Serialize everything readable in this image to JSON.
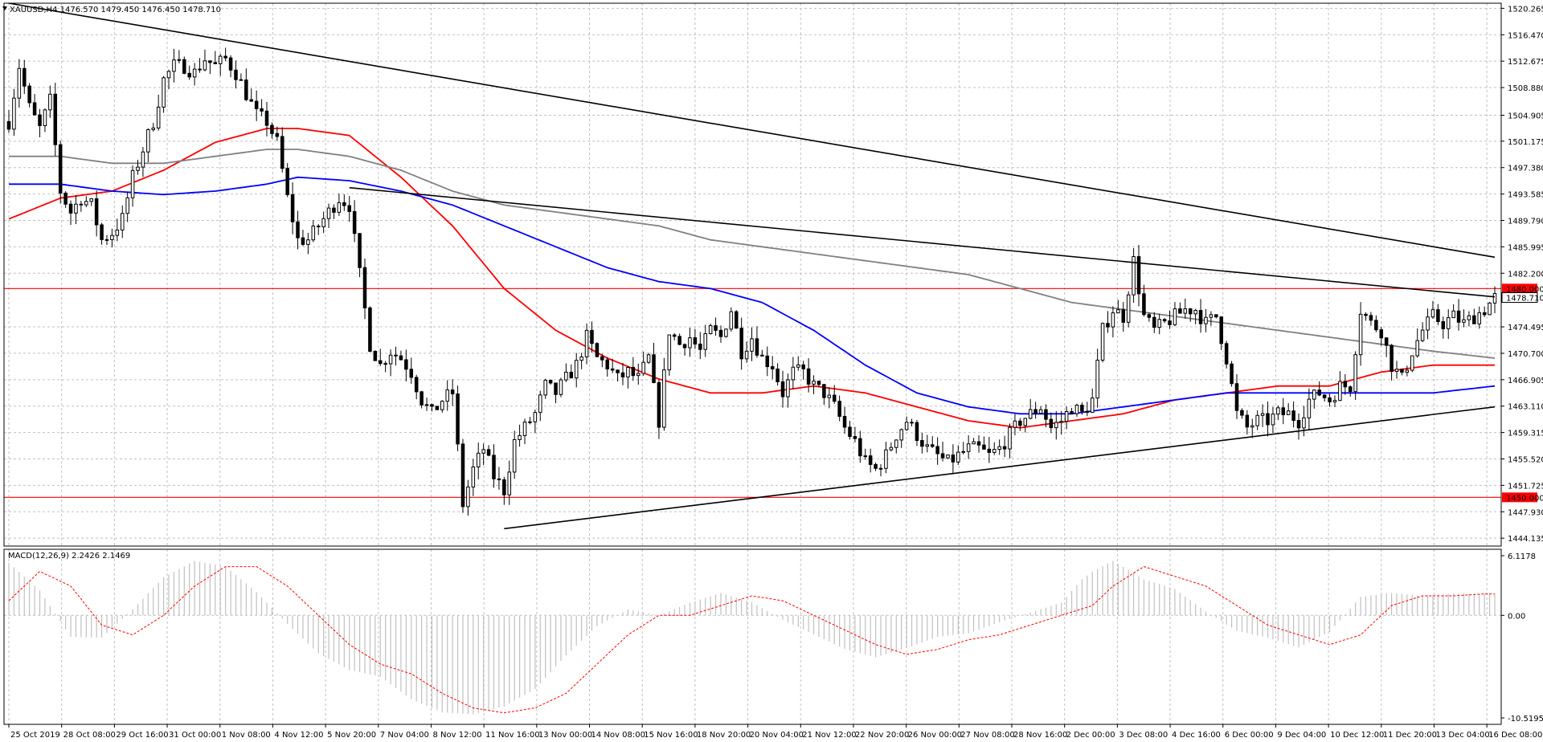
{
  "header": {
    "symbol_line": "XAUUSD,H4  1476.570 1479.450 1476.450 1478.710",
    "macd_line": "MACD(12,26,9) 2.2426 2.1469"
  },
  "colors": {
    "background": "#ffffff",
    "grid": "#c0c0c0",
    "candle": "#000000",
    "ma_red": "#ff0000",
    "ma_blue": "#0000ff",
    "ma_gray": "#808080",
    "hline": "#ff0000",
    "price_tag_bg": "#ff0000",
    "macd_hist": "#c0c0c0",
    "macd_signal": "#ff0000"
  },
  "price_labels": [
    "1520.265",
    "1516.470",
    "1512.675",
    "1508.880",
    "1504.905",
    "1501.175",
    "1497.380",
    "1493.585",
    "1489.790",
    "1485.995",
    "1482.200",
    "1478.710",
    "1474.495",
    "1470.700",
    "1466.905",
    "1463.110",
    "1459.315",
    "1455.520",
    "1451.725",
    "1447.930",
    "1444.135"
  ],
  "time_labels": [
    "25 Oct 2019",
    "28 Oct 08:00",
    "29 Oct 16:00",
    "31 Oct 00:00",
    "1 Nov 08:00",
    "4 Nov 12:00",
    "5 Nov 20:00",
    "7 Nov 04:00",
    "8 Nov 12:00",
    "11 Nov 16:00",
    "13 Nov 00:00",
    "14 Nov 08:00",
    "15 Nov 16:00",
    "18 Nov 20:00",
    "20 Nov 04:00",
    "21 Nov 12:00",
    "22 Nov 20:00",
    "26 Nov 00:00",
    "27 Nov 08:00",
    "28 Nov 16:00",
    "2 Dec 00:00",
    "3 Dec 08:00",
    "4 Dec 16:00",
    "6 Dec 00:00",
    "9 Dec 04:00",
    "10 Dec 12:00",
    "11 Dec 20:00",
    "13 Dec 04:00",
    "16 Dec 08:00"
  ],
  "hlines": [
    {
      "price": 1480.0,
      "label": "1480.000"
    },
    {
      "price": 1450.0,
      "label": "1450.000"
    }
  ],
  "current_price": {
    "price": 1478.71,
    "label": "1478.710"
  },
  "macd_labels": [
    "6.1178",
    "0.00",
    "-10.5195"
  ],
  "chart_data": {
    "type": "candlestick",
    "title": "XAUUSD,H4",
    "ylim": [
      1443.0,
      1521.0
    ],
    "macd_ylim": [
      -10.5195,
      6.1178
    ],
    "candles_count": 150,
    "close_anchors": [
      [
        0,
        1504
      ],
      [
        2,
        1512
      ],
      [
        4,
        1506
      ],
      [
        6,
        1503
      ],
      [
        8,
        1507
      ],
      [
        10,
        1494
      ],
      [
        12,
        1491
      ],
      [
        14,
        1493
      ],
      [
        16,
        1492
      ],
      [
        18,
        1487
      ],
      [
        20,
        1488
      ],
      [
        22,
        1490
      ],
      [
        24,
        1496
      ],
      [
        26,
        1500
      ],
      [
        28,
        1504
      ],
      [
        30,
        1510
      ],
      [
        32,
        1512
      ],
      [
        34,
        1512
      ],
      [
        36,
        1511
      ],
      [
        38,
        1513
      ],
      [
        40,
        1512
      ],
      [
        42,
        1513
      ],
      [
        44,
        1511
      ],
      [
        46,
        1508
      ],
      [
        48,
        1505
      ],
      [
        50,
        1504
      ],
      [
        52,
        1501
      ],
      [
        54,
        1493
      ],
      [
        56,
        1487
      ],
      [
        58,
        1487
      ],
      [
        60,
        1489
      ],
      [
        62,
        1491
      ],
      [
        64,
        1493
      ],
      [
        66,
        1492
      ],
      [
        68,
        1482
      ],
      [
        70,
        1472
      ],
      [
        72,
        1469
      ],
      [
        74,
        1471
      ],
      [
        76,
        1470
      ],
      [
        78,
        1468
      ],
      [
        80,
        1464
      ],
      [
        82,
        1462
      ],
      [
        84,
        1464
      ],
      [
        86,
        1465
      ],
      [
        88,
        1449
      ],
      [
        90,
        1454
      ],
      [
        92,
        1457
      ],
      [
        94,
        1453
      ],
      [
        96,
        1451
      ],
      [
        98,
        1458
      ],
      [
        100,
        1460
      ],
      [
        102,
        1462
      ],
      [
        104,
        1466
      ],
      [
        106,
        1465
      ],
      [
        108,
        1467
      ],
      [
        110,
        1469
      ],
      [
        112,
        1473
      ],
      [
        114,
        1470
      ],
      [
        116,
        1469
      ],
      [
        118,
        1467
      ],
      [
        120,
        1468
      ],
      [
        122,
        1467
      ],
      [
        124,
        1470
      ],
      [
        126,
        1461
      ],
      [
        128,
        1474
      ],
      [
        130,
        1472
      ],
      [
        132,
        1473
      ],
      [
        134,
        1471
      ],
      [
        136,
        1474
      ],
      [
        138,
        1473
      ],
      [
        140,
        1477
      ],
      [
        142,
        1471
      ],
      [
        144,
        1473
      ],
      [
        146,
        1470
      ],
      [
        148,
        1469
      ],
      [
        150,
        1465
      ],
      [
        152,
        1468
      ],
      [
        154,
        1468
      ],
      [
        156,
        1466
      ],
      [
        158,
        1465
      ],
      [
        160,
        1463
      ],
      [
        162,
        1460
      ],
      [
        164,
        1458
      ],
      [
        166,
        1455
      ],
      [
        168,
        1454
      ],
      [
        170,
        1456
      ],
      [
        172,
        1459
      ],
      [
        174,
        1461
      ],
      [
        176,
        1459
      ],
      [
        178,
        1457
      ],
      [
        180,
        1456
      ],
      [
        182,
        1455
      ],
      [
        184,
        1456
      ],
      [
        186,
        1457
      ],
      [
        188,
        1457
      ],
      [
        190,
        1456
      ],
      [
        192,
        1457
      ],
      [
        194,
        1459
      ],
      [
        196,
        1461
      ],
      [
        198,
        1462
      ],
      [
        200,
        1463
      ],
      [
        202,
        1460
      ],
      [
        204,
        1461
      ],
      [
        206,
        1463
      ],
      [
        208,
        1462
      ],
      [
        210,
        1464
      ],
      [
        212,
        1474
      ],
      [
        214,
        1477
      ],
      [
        216,
        1476
      ],
      [
        218,
        1484
      ],
      [
        220,
        1476
      ],
      [
        222,
        1474
      ],
      [
        224,
        1475
      ],
      [
        226,
        1476
      ],
      [
        228,
        1477
      ],
      [
        230,
        1477
      ],
      [
        232,
        1475
      ],
      [
        234,
        1476
      ],
      [
        236,
        1470
      ],
      [
        238,
        1462
      ],
      [
        240,
        1460
      ],
      [
        242,
        1461
      ],
      [
        244,
        1461
      ],
      [
        246,
        1462
      ],
      [
        248,
        1462
      ],
      [
        250,
        1461
      ],
      [
        252,
        1464
      ],
      [
        254,
        1465
      ],
      [
        256,
        1464
      ],
      [
        258,
        1466
      ],
      [
        260,
        1466
      ],
      [
        262,
        1477
      ],
      [
        264,
        1475
      ],
      [
        266,
        1474
      ],
      [
        268,
        1469
      ],
      [
        270,
        1467
      ],
      [
        272,
        1471
      ],
      [
        274,
        1474
      ],
      [
        276,
        1476
      ],
      [
        278,
        1475
      ],
      [
        280,
        1476
      ],
      [
        282,
        1475
      ],
      [
        284,
        1476
      ],
      [
        286,
        1477
      ],
      [
        288,
        1478.7
      ]
    ],
    "trendlines": [
      {
        "from": [
          0,
          1521.0
        ],
        "to": [
          288,
          1484.5
        ]
      },
      {
        "from": [
          66,
          1494.5
        ],
        "to": [
          288,
          1478.8
        ]
      },
      {
        "from": [
          96,
          1445.5
        ],
        "to": [
          288,
          1463.0
        ]
      }
    ],
    "moving_averages": [
      {
        "color": "#ff0000",
        "points": [
          [
            0,
            1490
          ],
          [
            10,
            1493
          ],
          [
            20,
            1494
          ],
          [
            30,
            1497
          ],
          [
            40,
            1501
          ],
          [
            50,
            1503
          ],
          [
            56,
            1503
          ],
          [
            66,
            1502
          ],
          [
            76,
            1496
          ],
          [
            86,
            1489
          ],
          [
            96,
            1480
          ],
          [
            106,
            1474
          ],
          [
            116,
            1470
          ],
          [
            126,
            1467
          ],
          [
            136,
            1465
          ],
          [
            146,
            1465
          ],
          [
            156,
            1466
          ],
          [
            166,
            1465
          ],
          [
            176,
            1463
          ],
          [
            186,
            1461
          ],
          [
            196,
            1460
          ],
          [
            206,
            1461
          ],
          [
            216,
            1462
          ],
          [
            226,
            1464
          ],
          [
            236,
            1465
          ],
          [
            246,
            1466
          ],
          [
            256,
            1466
          ],
          [
            266,
            1468
          ],
          [
            276,
            1469
          ],
          [
            288,
            1469
          ]
        ]
      },
      {
        "color": "#0000ff",
        "points": [
          [
            0,
            1495
          ],
          [
            10,
            1495
          ],
          [
            20,
            1494
          ],
          [
            30,
            1493.5
          ],
          [
            40,
            1494
          ],
          [
            50,
            1495
          ],
          [
            56,
            1496
          ],
          [
            66,
            1495.5
          ],
          [
            76,
            1494
          ],
          [
            86,
            1492
          ],
          [
            96,
            1489
          ],
          [
            106,
            1486
          ],
          [
            116,
            1483
          ],
          [
            126,
            1481
          ],
          [
            136,
            1480
          ],
          [
            146,
            1478
          ],
          [
            156,
            1474
          ],
          [
            166,
            1469
          ],
          [
            176,
            1465
          ],
          [
            186,
            1463
          ],
          [
            196,
            1462
          ],
          [
            206,
            1462
          ],
          [
            216,
            1463
          ],
          [
            226,
            1464
          ],
          [
            236,
            1465
          ],
          [
            246,
            1465
          ],
          [
            256,
            1465
          ],
          [
            266,
            1465
          ],
          [
            276,
            1465
          ],
          [
            288,
            1466
          ]
        ]
      },
      {
        "color": "#808080",
        "points": [
          [
            0,
            1499
          ],
          [
            10,
            1499
          ],
          [
            20,
            1498
          ],
          [
            30,
            1498
          ],
          [
            40,
            1499
          ],
          [
            50,
            1500
          ],
          [
            56,
            1500
          ],
          [
            66,
            1499
          ],
          [
            76,
            1497
          ],
          [
            86,
            1494
          ],
          [
            96,
            1492
          ],
          [
            106,
            1491
          ],
          [
            116,
            1490
          ],
          [
            126,
            1489
          ],
          [
            136,
            1487
          ],
          [
            146,
            1486
          ],
          [
            156,
            1485
          ],
          [
            166,
            1484
          ],
          [
            176,
            1483
          ],
          [
            186,
            1482
          ],
          [
            196,
            1480
          ],
          [
            206,
            1478
          ],
          [
            216,
            1477
          ],
          [
            226,
            1476
          ],
          [
            236,
            1475
          ],
          [
            246,
            1474
          ],
          [
            256,
            1473
          ],
          [
            266,
            1472
          ],
          [
            276,
            1471
          ],
          [
            288,
            1470
          ]
        ]
      }
    ],
    "macd_signal": [
      [
        0,
        1.5
      ],
      [
        6,
        4.5
      ],
      [
        12,
        3
      ],
      [
        18,
        -1
      ],
      [
        24,
        -2
      ],
      [
        30,
        0
      ],
      [
        36,
        3
      ],
      [
        42,
        5
      ],
      [
        48,
        5
      ],
      [
        54,
        3
      ],
      [
        60,
        0
      ],
      [
        66,
        -3
      ],
      [
        72,
        -5
      ],
      [
        78,
        -6
      ],
      [
        84,
        -8
      ],
      [
        90,
        -9.5
      ],
      [
        96,
        -10
      ],
      [
        102,
        -9.5
      ],
      [
        108,
        -8
      ],
      [
        114,
        -5
      ],
      [
        120,
        -2
      ],
      [
        126,
        0
      ],
      [
        132,
        0
      ],
      [
        138,
        1
      ],
      [
        144,
        2
      ],
      [
        150,
        1.5
      ],
      [
        156,
        0
      ],
      [
        162,
        -1.5
      ],
      [
        168,
        -3
      ],
      [
        174,
        -4
      ],
      [
        180,
        -3.5
      ],
      [
        186,
        -2.5
      ],
      [
        192,
        -2
      ],
      [
        198,
        -1
      ],
      [
        204,
        0
      ],
      [
        210,
        1
      ],
      [
        214,
        3
      ],
      [
        220,
        5
      ],
      [
        226,
        4
      ],
      [
        232,
        3
      ],
      [
        238,
        1
      ],
      [
        244,
        -1
      ],
      [
        250,
        -2
      ],
      [
        256,
        -3
      ],
      [
        262,
        -2
      ],
      [
        268,
        1
      ],
      [
        274,
        2
      ],
      [
        280,
        2
      ],
      [
        286,
        2.2
      ]
    ]
  }
}
